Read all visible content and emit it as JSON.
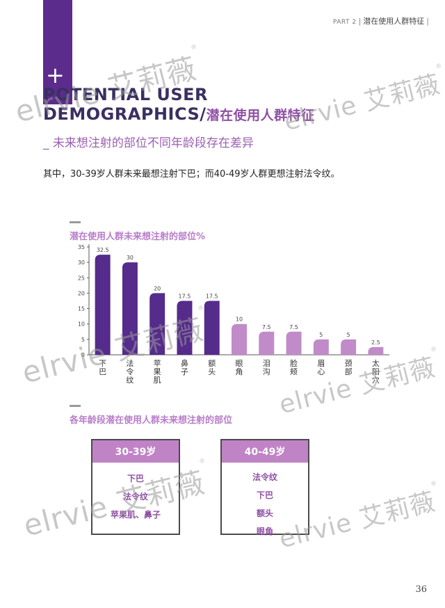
{
  "header": {
    "part": "PART 2",
    "section": "潜在使用人群特征"
  },
  "title": {
    "line1": "POTENTIAL USER",
    "line2": "DEMOGRAPHICS/",
    "cn": "潜在使用人群特征"
  },
  "subtitle": "_ 未来想注射的部位不同年龄段存在差异",
  "body_text": "其中，30-39岁人群未来最想注射下巴；而40-49岁人群更想注射法令纹。",
  "chart_data": {
    "type": "bar",
    "title": "潜在使用人群未来想注射的部位%",
    "categories": [
      "下巴",
      "法令纹",
      "苹果肌",
      "鼻子",
      "额头",
      "眼角",
      "泪沟",
      "脸颊",
      "眉心",
      "颈部",
      "太阳穴"
    ],
    "values": [
      32.5,
      30,
      20,
      17.5,
      17.5,
      10,
      7.5,
      7.5,
      5,
      5,
      2.5
    ],
    "value_labels": [
      "32.5",
      "30",
      "20",
      "17.5",
      "17.5",
      "10",
      "7.5",
      "7.5",
      "5",
      "5",
      "2.5"
    ],
    "yticks": [
      "0",
      "5",
      "10",
      "15",
      "20",
      "25",
      "30",
      "35"
    ],
    "ylim": [
      0,
      35
    ],
    "colors": {
      "dark": "#552b8b",
      "light": "#c18bc9",
      "axis": "#555555"
    },
    "dark_count": 5
  },
  "section2_title": "各年龄段潜在使用人群未来想注射的部位",
  "cards": [
    {
      "age": "30-39岁",
      "items": [
        "下巴",
        "法令纹",
        "苹果肌、鼻子"
      ]
    },
    {
      "age": "40-49岁",
      "items": [
        "法令纹",
        "下巴",
        "额头",
        "眼角"
      ]
    }
  ],
  "watermark": {
    "text": "elrvie 艾莉薇",
    "reg": "®"
  },
  "page_number": "36"
}
